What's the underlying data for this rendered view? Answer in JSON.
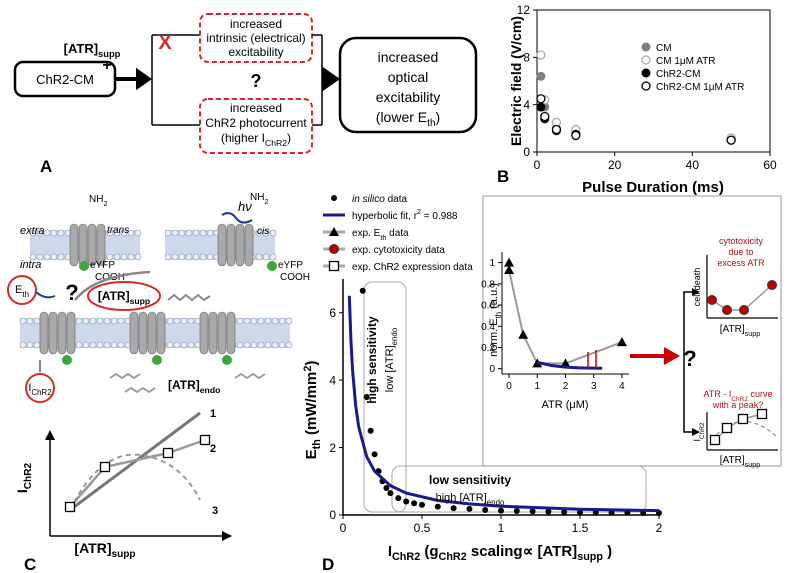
{
  "panel_labels": {
    "a": "A",
    "b": "B",
    "c": "C",
    "d": "D"
  },
  "panel_a": {
    "source": "ChR2-CM",
    "input": [
      "[ATR]",
      {
        "sub": "supp"
      }
    ],
    "plus": "+",
    "blocked": "X",
    "path_electrical": [
      "increased",
      "intrinsic (electrical)",
      "excitability"
    ],
    "question": "?",
    "path_optical": [
      "increased",
      "ChR2 photocurrent",
      [
        "(higher I",
        {
          "sub": "ChR2"
        },
        ")"
      ]
    ],
    "outcome": [
      "increased",
      "optical",
      "excitability",
      [
        "(lower E",
        {
          "sub": "th"
        },
        ")"
      ]
    ]
  },
  "panel_c": {
    "extra": "extra",
    "intra": "intra",
    "nh2_trans": [
      "NH",
      {
        "sub": "2"
      }
    ],
    "trans": "trans",
    "eyfp_trans": "eYFP",
    "cooh_trans": "COOH",
    "light": "hν",
    "nh2_cis": [
      "NH",
      {
        "sub": "2"
      }
    ],
    "cis": "cis",
    "eyfp_cis": "eYFP",
    "cooh_cis": "COOH",
    "threshold": [
      "E",
      {
        "sub": "th"
      }
    ],
    "question": "?",
    "atr_supp": [
      "[ATR]",
      {
        "sub": "supp"
      }
    ],
    "current": [
      "I",
      {
        "sub": "ChR2"
      }
    ],
    "atr_endo": [
      "[ATR]",
      {
        "sub": "endo"
      }
    ],
    "schematic": {
      "y_label": [
        "I",
        {
          "sub": "ChR2"
        }
      ],
      "x_label": [
        "[ATR]",
        {
          "sub": "supp"
        }
      ],
      "curve_labels": [
        "1",
        "2",
        "3"
      ]
    }
  },
  "panel_d_side": {
    "question": "?",
    "cytotoxicity_note": [
      "cytotoxicity",
      "due to",
      "excess ATR"
    ],
    "cytotoxicity_y": "cell death",
    "cytotoxicity_x": [
      "[ATR]",
      {
        "sub": "supp"
      }
    ],
    "peak_note": [
      [
        "ATR - I",
        {
          "sub": "ChR2"
        },
        " curve"
      ],
      "with a peak?"
    ],
    "peak_y": [
      "I",
      {
        "sub": "ChR2"
      }
    ],
    "peak_x": [
      "[ATR]",
      {
        "sub": "supp"
      }
    ]
  },
  "chart_data": [
    {
      "type": "scatter",
      "y_label": "Electric field  (V/cm)",
      "x_label": "Pulse Duration (ms)",
      "xlim": [
        0,
        60
      ],
      "xticks": [
        0,
        20,
        40,
        60
      ],
      "ylim": [
        0,
        12
      ],
      "yticks": [
        0,
        4,
        8,
        12
      ],
      "legend": "upper right",
      "series": [
        {
          "name": "CM",
          "color": "#7f7f7f",
          "marker": "filled",
          "x": [
            1,
            2,
            5,
            10,
            50
          ],
          "values": [
            6.4,
            3.8,
            2.0,
            1.6,
            1.1
          ]
        },
        {
          "name": "CM 1μM ATR",
          "color": "#aaaaaa",
          "marker": "open",
          "x": [
            1,
            2,
            5,
            10,
            50
          ],
          "values": [
            8.2,
            4.4,
            2.5,
            1.9,
            1.2
          ]
        },
        {
          "name": "ChR2-CM",
          "color": "#000000",
          "marker": "filled",
          "x": [
            1,
            2,
            5,
            10,
            50
          ],
          "values": [
            3.8,
            2.8,
            1.8,
            1.5,
            1.0
          ]
        },
        {
          "name": "ChR2-CM 1μM ATR",
          "color": "#000000",
          "marker": "open",
          "x": [
            1,
            2,
            5,
            10,
            50
          ],
          "values": [
            4.5,
            3.0,
            1.9,
            1.4,
            1.0
          ]
        }
      ]
    },
    {
      "type": "scatter",
      "y_label": [
        "E",
        {
          "sub": "th"
        },
        " (mW/mm",
        {
          "sup": "2"
        },
        ")"
      ],
      "x_label": [
        "I",
        {
          "sub": "ChR2"
        },
        " (g",
        {
          "sub": "ChR2"
        },
        " scaling∝ [ATR]",
        {
          "sub": "supp"
        },
        " )"
      ],
      "xlim": [
        0,
        2
      ],
      "xticks": [
        0,
        0.5,
        1,
        1.5,
        2
      ],
      "ylim": [
        0,
        7
      ],
      "yticks": [
        0,
        2,
        4,
        6
      ],
      "legend": "upper left",
      "series": [
        {
          "name": [
            {
              "i": "in silico"
            },
            " data"
          ],
          "color": "#000000",
          "marker": "dot",
          "x": [
            0.125,
            0.15,
            0.175,
            0.2,
            0.225,
            0.25,
            0.275,
            0.3,
            0.35,
            0.4,
            0.45,
            0.5,
            0.6,
            0.7,
            0.8,
            0.9,
            1.0,
            1.1,
            1.2,
            1.3,
            1.4,
            1.5,
            1.6,
            1.7,
            1.8,
            1.9,
            2.0
          ],
          "values": [
            6.65,
            3.5,
            2.5,
            1.8,
            1.3,
            1.0,
            0.8,
            0.65,
            0.5,
            0.4,
            0.35,
            0.3,
            0.25,
            0.2,
            0.18,
            0.15,
            0.13,
            0.12,
            0.11,
            0.1,
            0.09,
            0.08,
            0.08,
            0.07,
            0.07,
            0.06,
            0.06
          ]
        },
        {
          "name": [
            "hyperbolic fit, r",
            {
              "sup": "2"
            },
            " = 0.988"
          ],
          "color": "#1a1a8c",
          "marker": "line",
          "x": [
            0.04,
            0.05,
            0.06,
            0.08,
            0.1,
            0.15,
            0.2,
            0.3,
            0.4,
            0.6,
            0.8,
            1,
            1.5,
            2
          ],
          "values": [
            6.5,
            5.2,
            4.33,
            3.25,
            2.6,
            1.73,
            1.3,
            0.87,
            0.65,
            0.43,
            0.33,
            0.26,
            0.17,
            0.13
          ]
        }
      ],
      "legend_entries": [
        {
          "name": [
            "exp. E",
            {
              "sub": "th"
            },
            " data"
          ],
          "marker": "triangle",
          "color": "#000000"
        },
        {
          "name": "exp. cytotoxicity data",
          "marker": "red-dot",
          "color": "#c00000"
        },
        {
          "name": "exp. ChR2 expression data",
          "marker": "square",
          "color": "#000000"
        }
      ],
      "annotations": {
        "high": {
          "title": "high sensitivity",
          "detail": [
            "low [ATR]",
            {
              "sub": "endo"
            }
          ]
        },
        "low": {
          "title": "low sensitivity",
          "detail": [
            "high [ATR]",
            {
              "sub": "endo"
            }
          ]
        }
      }
    },
    {
      "type": "line",
      "y_label": [
        "norm. E",
        {
          "sub": "th"
        },
        " (a.u.)"
      ],
      "x_label": "ATR (μM)",
      "xlim": [
        -0.25,
        4.25
      ],
      "xticks": [
        0,
        1,
        2,
        3,
        4
      ],
      "ylim": [
        -0.05,
        1.1
      ],
      "yticks": [
        0,
        0.2,
        0.4,
        0.6,
        0.8,
        1
      ],
      "series": [
        {
          "color": "#000000",
          "line_color": "#9a9a9a",
          "marker": "triangle",
          "x": [
            0,
            0,
            0.5,
            1,
            2,
            4
          ],
          "values": [
            1,
            0.93,
            0.32,
            0.05,
            0.05,
            0.25
          ]
        },
        {
          "color": "#1a1a8c",
          "marker": "line",
          "x": [
            1,
            1.5,
            2,
            2.5,
            3,
            3.3
          ],
          "values": [
            0.06,
            0.03,
            0.015,
            0.008,
            0.005,
            0.004
          ]
        }
      ]
    }
  ]
}
